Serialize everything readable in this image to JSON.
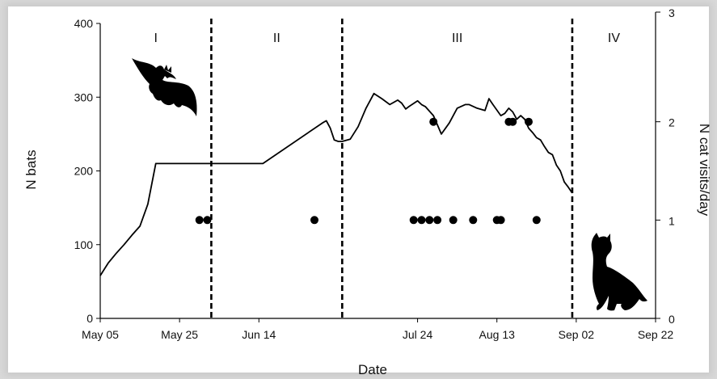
{
  "chart_data": {
    "type": "line",
    "xlabel": "Date",
    "ylabel": "N bats",
    "y2label": "N cat visits/day",
    "x_ticks": [
      "May 05",
      "May 25",
      "Jun 14",
      "Jul 24",
      "Aug 13",
      "Sep 02",
      "Sep 22"
    ],
    "x_range_days": [
      0,
      140
    ],
    "ylim": [
      0,
      400
    ],
    "y_ticks": [
      0,
      100,
      200,
      300,
      400
    ],
    "y2lim": [
      0,
      3
    ],
    "y2_ticks": [
      0,
      1,
      2,
      3
    ],
    "grid": false,
    "periods": [
      {
        "label": "I",
        "start": "May 05",
        "end": "Jun 02"
      },
      {
        "label": "II",
        "start": "Jun 02",
        "end": "Jul 05"
      },
      {
        "label": "III",
        "start": "Jul 05",
        "end": "Sep 01"
      },
      {
        "label": "IV",
        "start": "Sep 01",
        "end": "Sep 22"
      }
    ],
    "period_boundaries": [
      "Jun 02",
      "Jul 05",
      "Sep 01"
    ],
    "series": [
      {
        "axis": "left",
        "style": "line",
        "x": [
          "May 05",
          "May 07",
          "May 09",
          "May 11",
          "May 13",
          "May 15",
          "May 17",
          "May 19",
          "Jun 01",
          "Jun 15",
          "Jun 30",
          "Jul 01",
          "Jul 02",
          "Jul 03",
          "Jul 04",
          "Jul 05",
          "Jul 07",
          "Jul 09",
          "Jul 11",
          "Jul 12",
          "Jul 13",
          "Jul 15",
          "Jul 17",
          "Jul 19",
          "Jul 20",
          "Jul 21",
          "Jul 22",
          "Jul 24",
          "Jul 25",
          "Jul 26",
          "Jul 28",
          "Jul 30",
          "Aug 01",
          "Aug 03",
          "Aug 05",
          "Aug 06",
          "Aug 08",
          "Aug 10",
          "Aug 11",
          "Aug 12",
          "Aug 14",
          "Aug 15",
          "Aug 16",
          "Aug 17",
          "Aug 18",
          "Aug 19",
          "Aug 20",
          "Aug 21",
          "Aug 22",
          "Aug 23",
          "Aug 24",
          "Aug 25",
          "Aug 26",
          "Aug 27",
          "Aug 28",
          "Aug 29",
          "Aug 30",
          "Aug 31",
          "Sep 01"
        ],
        "y": [
          58,
          75,
          88,
          100,
          113,
          125,
          155,
          210,
          210,
          210,
          265,
          268,
          258,
          242,
          240,
          240,
          243,
          260,
          285,
          295,
          305,
          298,
          290,
          296,
          292,
          284,
          288,
          295,
          290,
          287,
          275,
          250,
          265,
          285,
          290,
          290,
          285,
          282,
          298,
          290,
          275,
          278,
          285,
          280,
          270,
          275,
          270,
          258,
          252,
          245,
          242,
          233,
          225,
          222,
          208,
          200,
          185,
          178,
          170
        ]
      },
      {
        "axis": "right",
        "style": "scatter",
        "x": [
          "May 30",
          "Jun 01",
          "Jun 28",
          "Jul 23",
          "Jul 25",
          "Jul 27",
          "Jul 29",
          "Aug 02",
          "Aug 07",
          "Aug 13",
          "Aug 14",
          "Aug 23",
          "Jul 28",
          "Aug 16",
          "Aug 17",
          "Aug 21"
        ],
        "y": [
          1,
          1,
          1,
          1,
          1,
          1,
          1,
          1,
          1,
          1,
          1,
          1,
          2,
          2,
          2,
          2
        ]
      }
    ]
  },
  "silhouettes": {
    "left": "bat-silhouette",
    "right": "cat-silhouette"
  },
  "colors": {
    "ink": "#000000",
    "background": "#ffffff",
    "border_shadow": "#d9d9d9"
  }
}
